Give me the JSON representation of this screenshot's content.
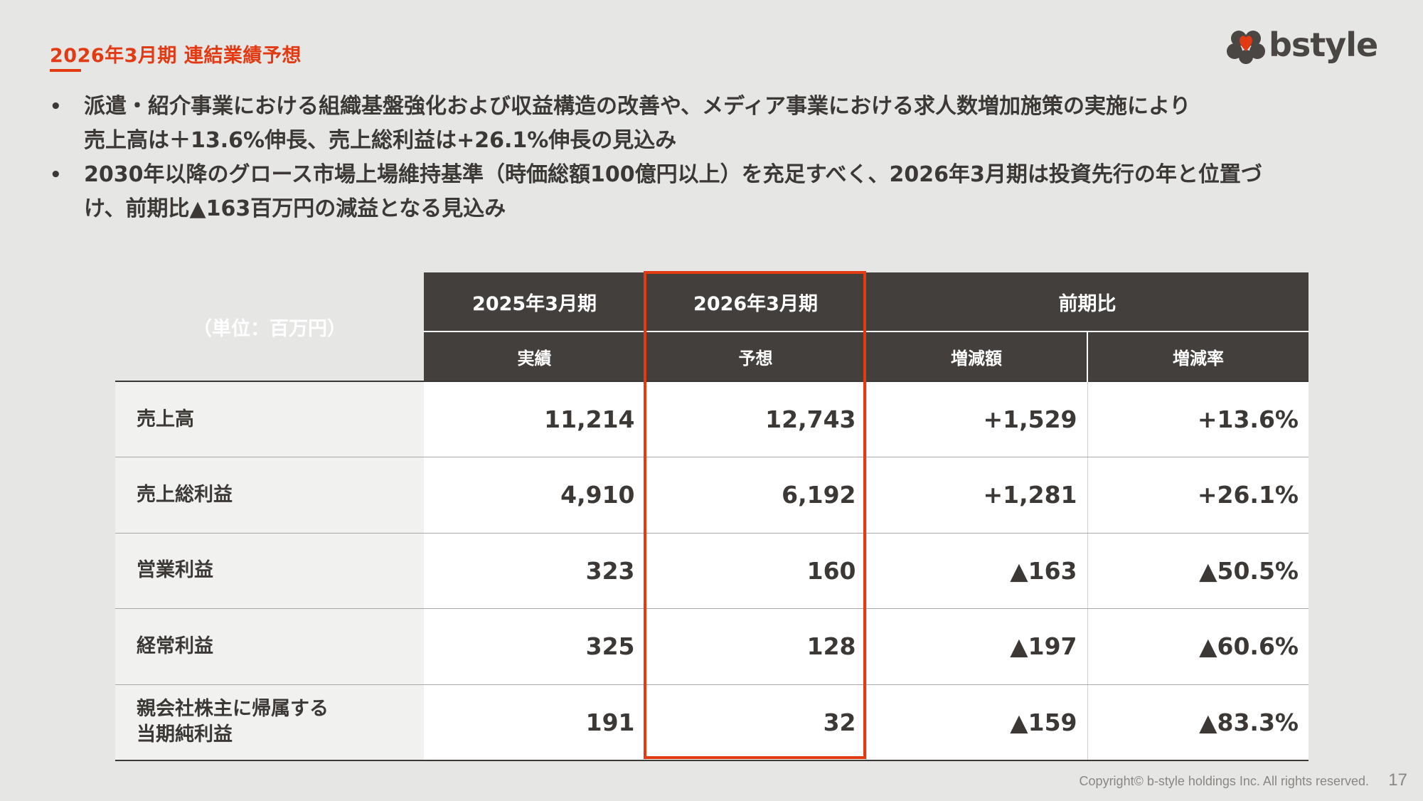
{
  "header": {
    "title": "2026年3月期 連結業績予想",
    "logo_text": "bstyle"
  },
  "bullets": [
    {
      "lines": [
        "派遣・紹介事業における組織基盤強化および収益構造の改善や、メディア事業における求人数増加施策の実施により",
        "売上高は＋13.6%伸長、売上総利益は+26.1%伸長の見込み"
      ]
    },
    {
      "lines": [
        "2030年以降のグロース市場上場維持基準（時価総額100億円以上）を充足すべく、2026年3月期は投資先行の年と位置づ",
        "け、前期比▲163百万円の減益となる見込み"
      ]
    }
  ],
  "table": {
    "unit_label": "（単位：百万円）",
    "headers_top": [
      "2025年3月期",
      "2026年3月期",
      "前期比"
    ],
    "headers_sub": [
      "実績",
      "予想",
      "増減額",
      "増減率"
    ],
    "rows": [
      {
        "label": [
          "売上高"
        ],
        "actual": "11,214",
        "forecast": "12,743",
        "change": "+1,529",
        "rate": "+13.6%"
      },
      {
        "label": [
          "売上総利益"
        ],
        "actual": "4,910",
        "forecast": "6,192",
        "change": "+1,281",
        "rate": "+26.1%"
      },
      {
        "label": [
          "営業利益"
        ],
        "actual": "323",
        "forecast": "160",
        "change": "▲163",
        "rate": "▲50.5%"
      },
      {
        "label": [
          "経常利益"
        ],
        "actual": "325",
        "forecast": "128",
        "change": "▲197",
        "rate": "▲60.6%"
      },
      {
        "label": [
          "親会社株主に帰属する",
          "当期純利益"
        ],
        "actual": "191",
        "forecast": "32",
        "change": "▲159",
        "rate": "▲83.3%"
      }
    ]
  },
  "footer": {
    "copyright": "Copyright© b-style holdings Inc. All rights reserved.",
    "page_number": "17"
  },
  "colors": {
    "accent": "#e23a13",
    "header_bg": "#433f3c",
    "page_bg": "#e6e6e5"
  }
}
